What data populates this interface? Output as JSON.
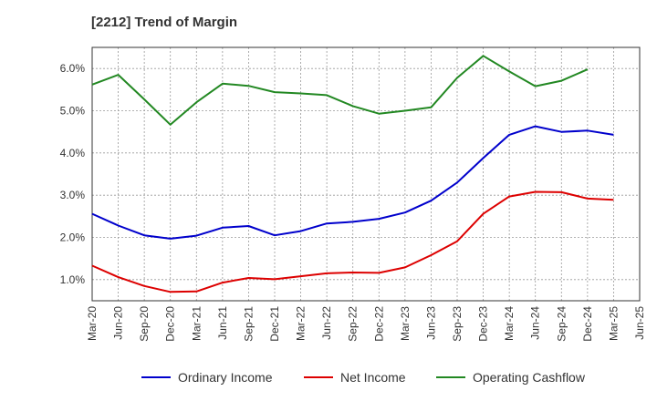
{
  "chart_data": {
    "type": "line",
    "title": "[2212]  Trend of Margin",
    "xlabel": "",
    "ylabel": "",
    "x": [
      "Mar-20",
      "Jun-20",
      "Sep-20",
      "Dec-20",
      "Mar-21",
      "Jun-21",
      "Sep-21",
      "Dec-21",
      "Mar-22",
      "Jun-22",
      "Sep-22",
      "Dec-22",
      "Mar-23",
      "Jun-23",
      "Sep-23",
      "Dec-23",
      "Mar-24",
      "Jun-24",
      "Sep-24",
      "Dec-24",
      "Mar-25",
      "Jun-25"
    ],
    "ylim": [
      0.5,
      6.5
    ],
    "yticks": [
      1.0,
      2.0,
      3.0,
      4.0,
      5.0,
      6.0
    ],
    "ytick_labels": [
      "1.0%",
      "2.0%",
      "3.0%",
      "4.0%",
      "5.0%",
      "6.0%"
    ],
    "grid": true,
    "legend_position": "bottom",
    "series": [
      {
        "name": "Ordinary Income",
        "color": "#0000cc",
        "values": [
          2.56,
          2.28,
          2.05,
          1.97,
          2.04,
          2.23,
          2.27,
          2.05,
          2.15,
          2.33,
          2.37,
          2.44,
          2.59,
          2.87,
          3.3,
          3.88,
          4.43,
          4.63,
          4.5,
          4.53,
          4.43,
          null
        ]
      },
      {
        "name": "Net Income",
        "color": "#dd0000",
        "values": [
          1.33,
          1.06,
          0.85,
          0.71,
          0.72,
          0.93,
          1.04,
          1.01,
          1.08,
          1.15,
          1.17,
          1.16,
          1.29,
          1.58,
          1.91,
          2.56,
          2.97,
          3.08,
          3.07,
          2.92,
          2.89,
          null
        ]
      },
      {
        "name": "Operating Cashflow",
        "color": "#228822",
        "values": [
          5.62,
          5.85,
          5.27,
          4.67,
          5.2,
          5.64,
          5.59,
          5.44,
          5.41,
          5.37,
          5.11,
          4.93,
          5.0,
          5.08,
          5.78,
          6.3,
          5.93,
          5.58,
          5.71,
          5.98,
          null,
          null
        ]
      }
    ]
  }
}
